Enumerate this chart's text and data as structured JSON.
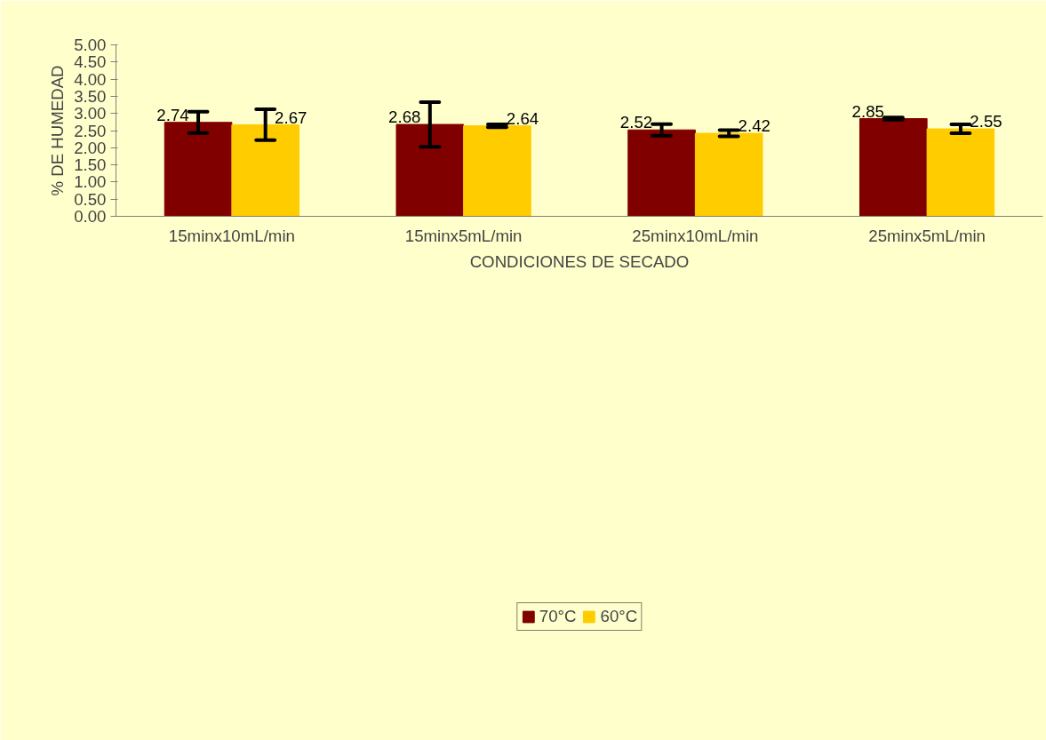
{
  "chart_data": {
    "type": "bar",
    "xlabel": "CONDICIONES DE SECADO",
    "ylabel": "% DE HUMEDAD",
    "categories": [
      "15minx10mL/min",
      "15minx5mL/min",
      "25minx10mL/min",
      "25minx5mL/min"
    ],
    "series": [
      {
        "name": "70°C",
        "color": "#800000",
        "values": [
          2.74,
          2.68,
          2.52,
          2.85
        ],
        "errors": [
          0.31,
          0.65,
          0.17,
          0.03
        ]
      },
      {
        "name": "60°C",
        "color": "#ffcc00",
        "values": [
          2.67,
          2.64,
          2.42,
          2.55
        ],
        "errors": [
          0.45,
          0.04,
          0.09,
          0.13
        ]
      }
    ],
    "ylim": [
      0,
      5
    ],
    "yticks": [
      {
        "value": 0,
        "label": "0.00"
      },
      {
        "value": 0.5,
        "label": "0.50"
      },
      {
        "value": 1,
        "label": "1.00"
      },
      {
        "value": 1.5,
        "label": "1.50"
      },
      {
        "value": 2,
        "label": "2.00"
      },
      {
        "value": 2.5,
        "label": "2.50"
      },
      {
        "value": 3,
        "label": "3.00"
      },
      {
        "value": 3.5,
        "label": "3.50"
      },
      {
        "value": 4,
        "label": "4.00"
      },
      {
        "value": 4.5,
        "label": "4.50"
      },
      {
        "value": 5,
        "label": "5.00"
      }
    ],
    "data_labels": true,
    "legend": "bottom",
    "grid": false
  }
}
